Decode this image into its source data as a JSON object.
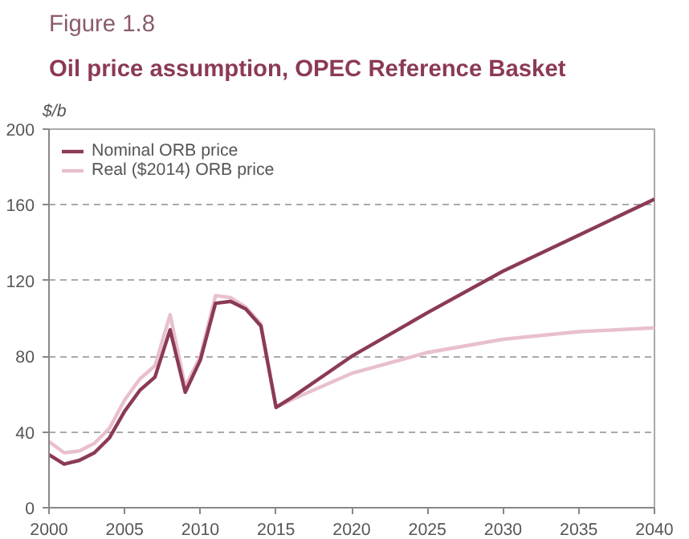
{
  "chart_data": {
    "type": "line",
    "title": "Figure 1.8",
    "subtitle": "Oil price assumption, OPEC Reference Basket",
    "ylabel": "$/b",
    "x": [
      2000,
      2001,
      2002,
      2003,
      2004,
      2005,
      2006,
      2007,
      2008,
      2009,
      2010,
      2011,
      2012,
      2013,
      2014,
      2015,
      2016,
      2020,
      2025,
      2030,
      2035,
      2040
    ],
    "series": [
      {
        "name": "Nominal ORB price",
        "color": "#8b3a55",
        "values": [
          28,
          23,
          25,
          29,
          37,
          51,
          62,
          69,
          94,
          61,
          78,
          108,
          109,
          105,
          96,
          53,
          58,
          80,
          103,
          125,
          144,
          163
        ]
      },
      {
        "name": "Real ($2014) ORB price",
        "color": "#e8c0cb",
        "values": [
          35,
          29,
          30,
          34,
          42,
          57,
          68,
          75,
          102,
          64,
          80,
          112,
          111,
          106,
          97,
          53,
          57,
          71,
          82,
          89,
          93,
          95
        ]
      }
    ],
    "xlim": [
      2000,
      2040
    ],
    "xticks": [
      2000,
      2005,
      2010,
      2015,
      2020,
      2025,
      2030,
      2035,
      2040
    ],
    "ylim": [
      0,
      200
    ],
    "yticks": [
      0,
      40,
      80,
      120,
      160,
      200
    ],
    "grid": "y",
    "legend": "top left",
    "line_style": "solid",
    "marker": "none"
  }
}
